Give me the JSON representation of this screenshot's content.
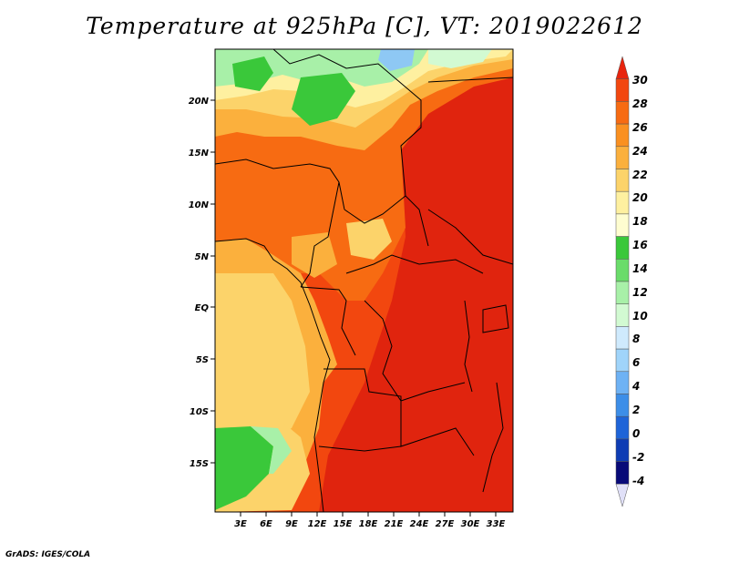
{
  "title": "Temperature at 925hPa [C], VT: 2019022612",
  "credit": "GrADS: IGES/COLA",
  "map": {
    "lat_labels": [
      "20N",
      "15N",
      "10N",
      "5N",
      "EQ",
      "5S",
      "10S",
      "15S"
    ],
    "lon_labels": [
      "3E",
      "6E",
      "9E",
      "12E",
      "15E",
      "18E",
      "21E",
      "24E",
      "27E",
      "30E",
      "33E"
    ]
  },
  "colorbar": {
    "levels": [
      "30",
      "28",
      "26",
      "24",
      "22",
      "20",
      "18",
      "16",
      "14",
      "12",
      "10",
      "8",
      "6",
      "4",
      "2",
      "0",
      "-2",
      "-4"
    ],
    "colors": [
      "#e8240e",
      "#f2470f",
      "#f76b12",
      "#fa9020",
      "#fbb03d",
      "#fcd36a",
      "#fef0a0",
      "#fefdd0",
      "#3ac83a",
      "#6adc6a",
      "#a8f0a8",
      "#d2fad2",
      "#cfeafd",
      "#a0d4fa",
      "#6eb2f4",
      "#3c8ee8",
      "#1e64d8",
      "#0e3cb4",
      "#080a78",
      "#e0e0f8"
    ]
  }
}
